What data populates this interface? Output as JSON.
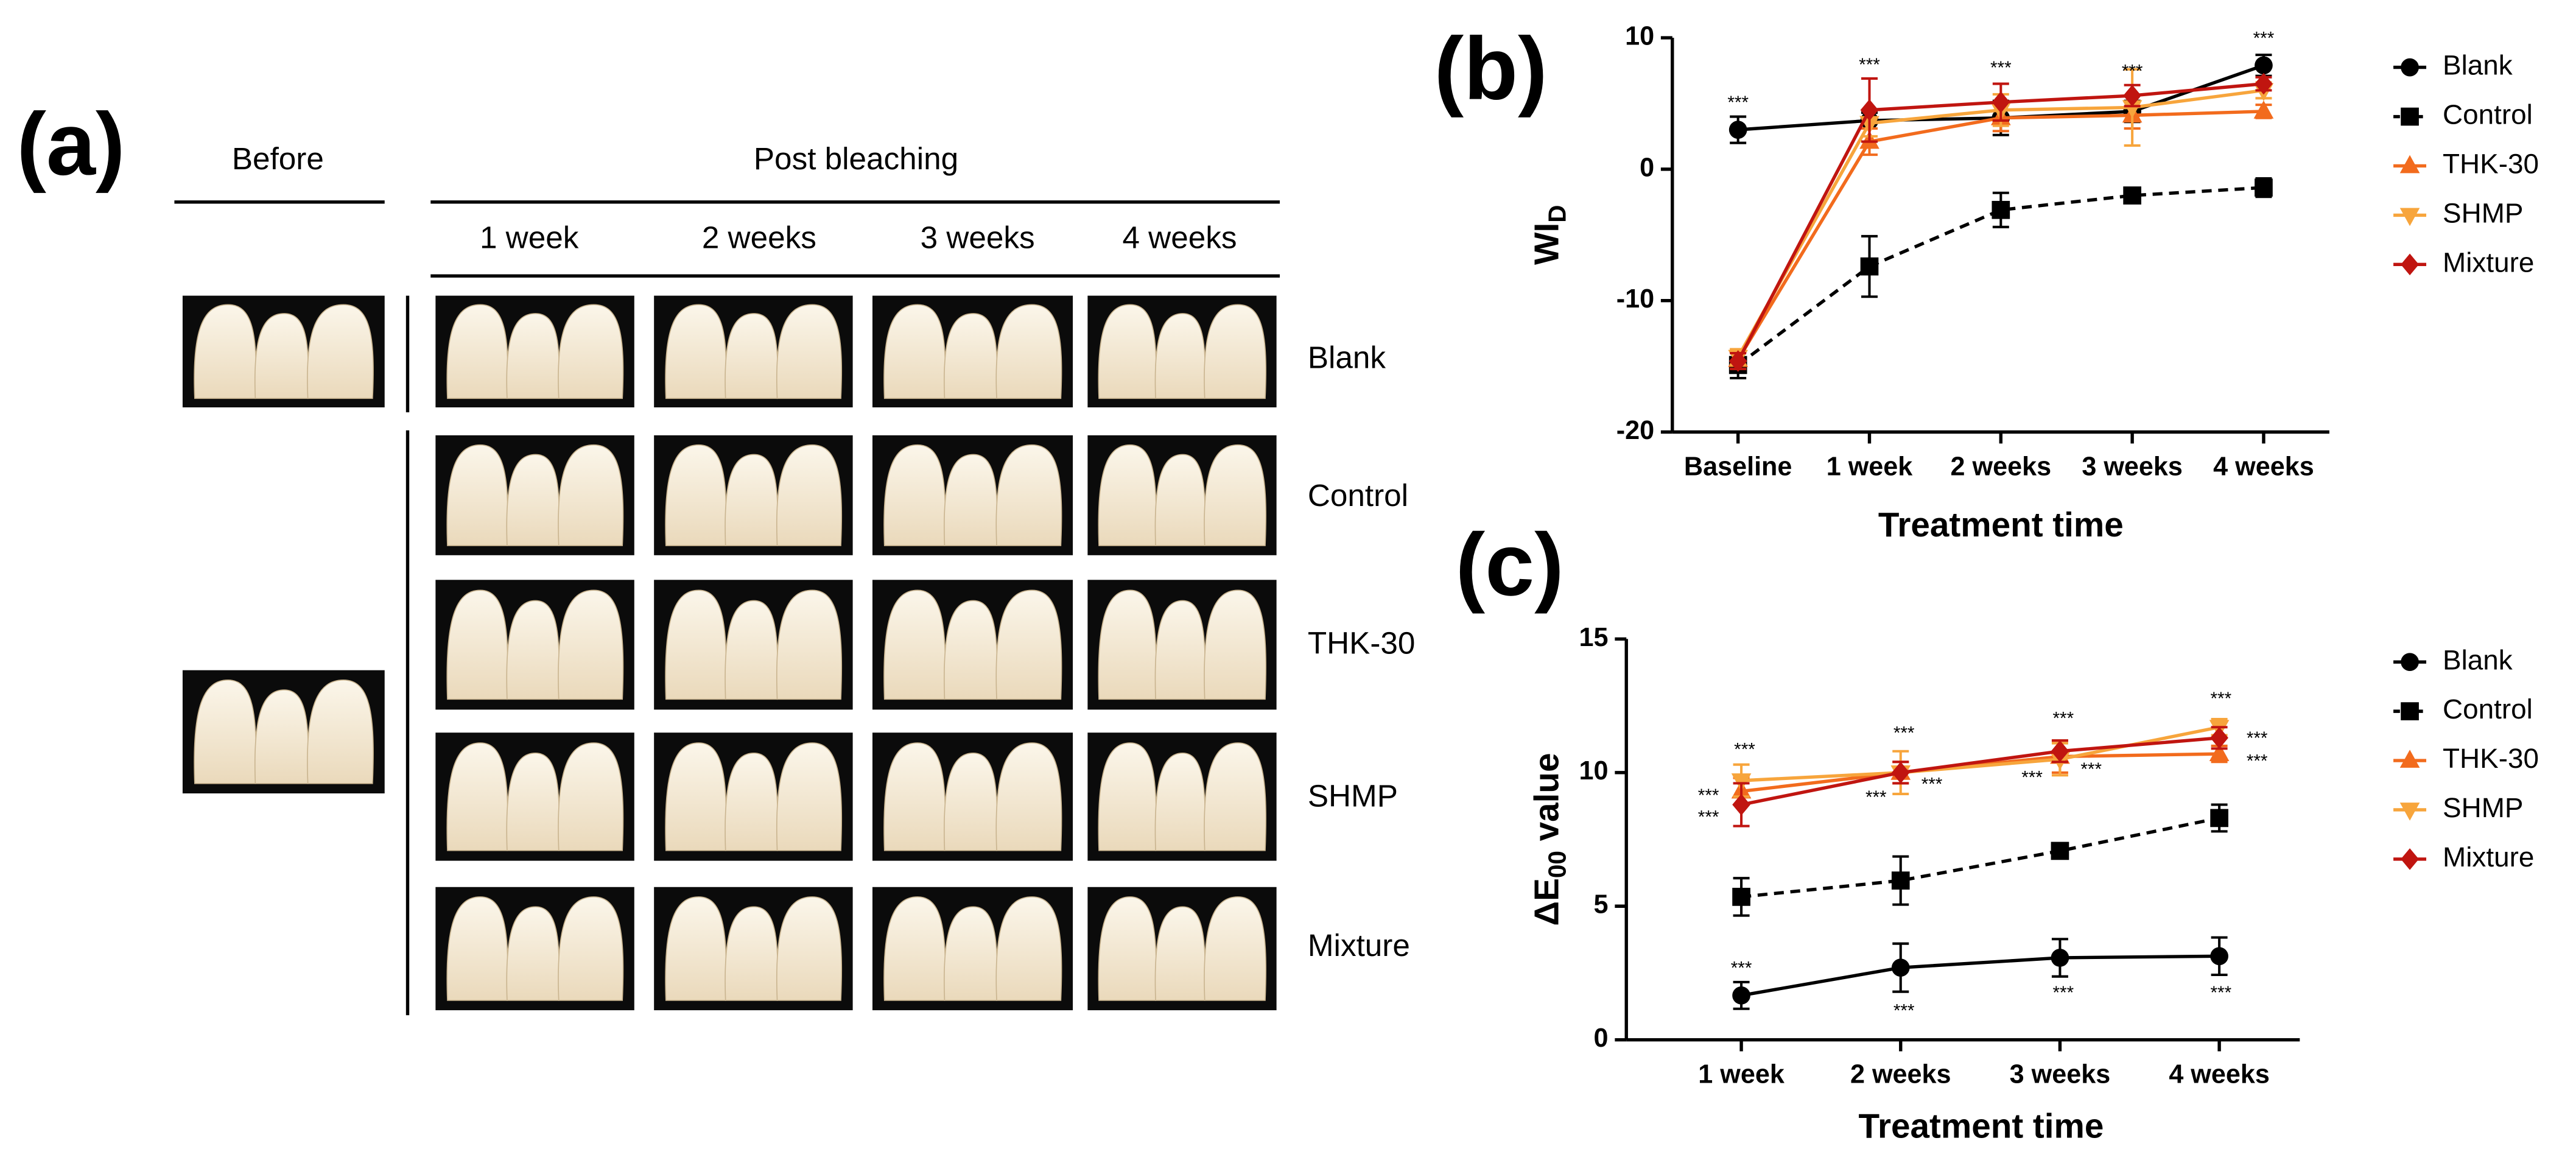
{
  "panel_a": {
    "label": "(a)",
    "before_header": "Before",
    "post_header": "Post bleaching",
    "weeks": [
      "1 week",
      "2 weeks",
      "3 weeks",
      "4 weeks"
    ],
    "rows": [
      "Blank",
      "Control",
      "THK-30",
      "SHMP",
      "Mixture"
    ]
  },
  "chart_data": [
    {
      "type": "line",
      "panel_label": "(b)",
      "x_label": "Treatment time",
      "y_label": {
        "main": "WI",
        "sub": "D"
      },
      "categories": [
        "Baseline",
        "1 week",
        "2 weeks",
        "3 weeks",
        "4 weeks"
      ],
      "ylim": [
        -20,
        10
      ],
      "yticks": [
        -20,
        -10,
        0,
        10
      ],
      "series": [
        {
          "name": "Blank",
          "color": "#000000",
          "marker": "circle",
          "dashed": false,
          "values": [
            3.0,
            3.7,
            3.9,
            4.4,
            7.9
          ],
          "errors": [
            1.0,
            0.6,
            1.3,
            0.8,
            0.8
          ]
        },
        {
          "name": "Control",
          "color": "#000000",
          "marker": "square",
          "dashed": true,
          "values": [
            -14.9,
            -7.4,
            -3.1,
            -2.0,
            -1.4
          ],
          "errors": [
            1.0,
            2.3,
            1.3,
            0.4,
            0.7
          ]
        },
        {
          "name": "THK-30",
          "color": "#f26b1d",
          "marker": "triangle-up",
          "dashed": false,
          "values": [
            -14.5,
            2.1,
            3.9,
            4.1,
            4.4
          ],
          "errors": [
            0.7,
            1.0,
            1.0,
            1.0,
            0.5
          ]
        },
        {
          "name": "SHMP",
          "color": "#f7a53c",
          "marker": "triangle-down",
          "dashed": false,
          "values": [
            -14.3,
            3.5,
            4.5,
            4.7,
            6.0
          ],
          "errors": [
            0.6,
            1.0,
            1.2,
            2.9,
            0.6
          ]
        },
        {
          "name": "Mixture",
          "color": "#c01510",
          "marker": "diamond",
          "dashed": false,
          "values": [
            -14.6,
            4.5,
            5.1,
            5.6,
            6.5
          ],
          "errors": [
            0.6,
            2.4,
            1.4,
            0.8,
            0.5
          ]
        }
      ],
      "annotations": [
        "***",
        "***",
        "***",
        "***",
        "***"
      ]
    },
    {
      "type": "line",
      "panel_label": "(c)",
      "x_label": "Treatment time",
      "y_label": {
        "main": "ΔE",
        "sub": "00",
        "suffix": " value"
      },
      "categories": [
        "1 week",
        "2 weeks",
        "3 weeks",
        "4 weeks"
      ],
      "ylim": [
        0,
        15
      ],
      "yticks": [
        0,
        5,
        10,
        15
      ],
      "series": [
        {
          "name": "Blank",
          "color": "#000000",
          "marker": "circle",
          "dashed": false,
          "values": [
            1.66,
            2.7,
            3.07,
            3.13
          ],
          "errors": [
            0.5,
            0.9,
            0.7,
            0.7
          ]
        },
        {
          "name": "Control",
          "color": "#000000",
          "marker": "square",
          "dashed": true,
          "values": [
            5.35,
            5.96,
            7.07,
            8.3
          ],
          "errors": [
            0.7,
            0.9,
            0.2,
            0.5
          ]
        },
        {
          "name": "THK-30",
          "color": "#f26b1d",
          "marker": "triangle-up",
          "dashed": false,
          "values": [
            9.3,
            10.0,
            10.6,
            10.7
          ],
          "errors": [
            0.5,
            0.4,
            0.6,
            0.3
          ]
        },
        {
          "name": "SHMP",
          "color": "#f7a53c",
          "marker": "triangle-down",
          "dashed": false,
          "values": [
            9.7,
            10.0,
            10.5,
            11.7
          ],
          "errors": [
            0.6,
            0.8,
            0.6,
            0.3
          ]
        },
        {
          "name": "Mixture",
          "color": "#c01510",
          "marker": "diamond",
          "dashed": false,
          "values": [
            8.8,
            10.0,
            10.8,
            11.3
          ],
          "errors": [
            0.8,
            0.4,
            0.4,
            0.4
          ]
        }
      ],
      "annotations": [
        "***",
        "***",
        "***",
        "***",
        "***",
        "***",
        "***",
        "***",
        "***",
        "***",
        "***",
        "***",
        "***",
        "***",
        "***",
        "***"
      ]
    }
  ]
}
